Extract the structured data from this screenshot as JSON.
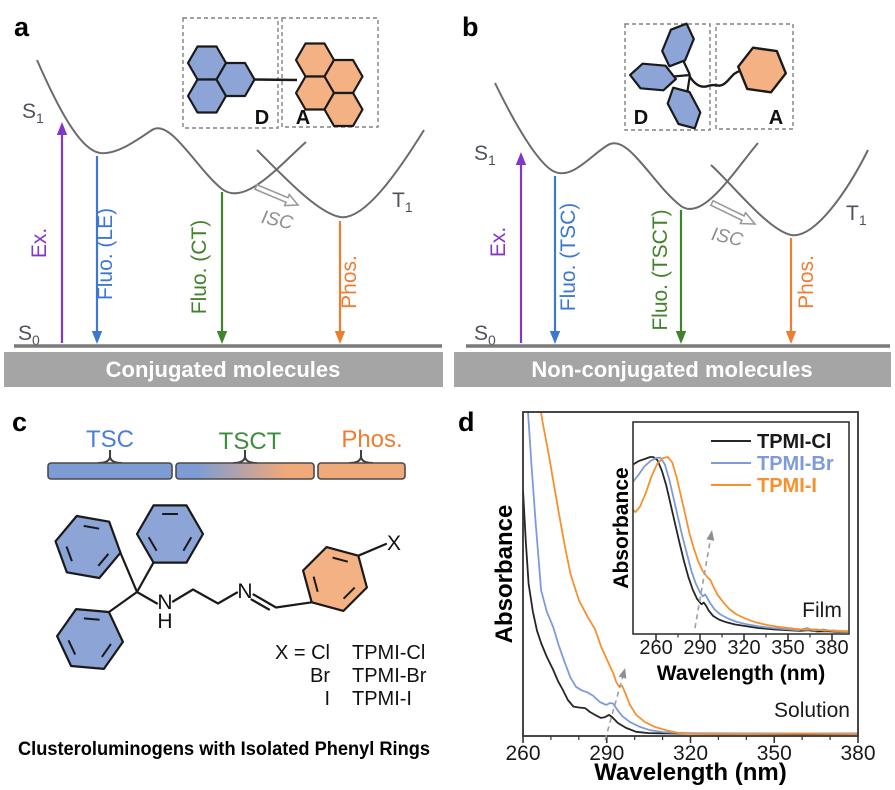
{
  "colors": {
    "excitation_purple": "#8138c8",
    "fluorescence_blue": "#3c78d2",
    "ct_green": "#43822c",
    "phosphorescence_orange": "#ed7d31",
    "surface_gray": "#6b6b6b",
    "donor_blue": "#8ca4d6",
    "acceptor_orange": "#f4b183",
    "footer_bar_gray": "#a5a5a5",
    "chart_black": "#262626",
    "chart_blue": "#7e9bd9",
    "chart_orange": "#f6912f"
  },
  "panel_a": {
    "label": "a",
    "donor_label": "D",
    "acceptor_label": "A",
    "s1_base": "S",
    "s1_sub": "1",
    "s0_base": "S",
    "s0_sub": "0",
    "t1_base": "T",
    "t1_sub": "1",
    "arrow_ex": "Ex.",
    "arrow_fluo_well1": "Fluo. (LE)",
    "arrow_fluo_well2": "Fluo. (CT)",
    "arrow_phos": "Phos.",
    "isc": "ISC",
    "footer": "Conjugated molecules"
  },
  "panel_b": {
    "label": "b",
    "donor_label": "D",
    "acceptor_label": "A",
    "s1_base": "S",
    "s1_sub": "1",
    "s0_base": "S",
    "s0_sub": "0",
    "t1_base": "T",
    "t1_sub": "1",
    "arrow_ex": "Ex.",
    "arrow_fluo_well1": "Fluo. (TSC)",
    "arrow_fluo_well2": "Fluo. (TSCT)",
    "arrow_phos": "Phos.",
    "isc": "ISC",
    "footer": "Non-conjugated molecules"
  },
  "panel_c": {
    "label": "c",
    "region_labels": [
      {
        "text": "TSC",
        "color": "#4a7fd8"
      },
      {
        "text": "TSCT",
        "color": "#3e8e3e"
      },
      {
        "text": "Phos.",
        "color": "#ed7d31"
      }
    ],
    "atoms": {
      "amine_n": "N",
      "amine_h": "H",
      "imine_n": "N",
      "substituent": "X"
    },
    "variants": [
      {
        "x": "X = Cl",
        "name": "TPMI-Cl"
      },
      {
        "x": "Br",
        "name": "TPMI-Br"
      },
      {
        "x": "I",
        "name": "TPMI-I"
      }
    ],
    "caption": "Clusteroluminogens with Isolated Phenyl Rings"
  },
  "panel_d": {
    "label": "d"
  },
  "chart_data": [
    {
      "id": "solution",
      "type": "line",
      "xlabel": "Wavelength (nm)",
      "ylabel": "Absorbance",
      "annotation": "Solution",
      "xlim": [
        260,
        380
      ],
      "xticks": [
        260,
        290,
        320,
        350,
        380
      ],
      "minor_xticks": [
        270,
        280,
        300,
        310,
        330,
        340,
        360,
        370
      ],
      "ylim": [
        0,
        1
      ],
      "legend": false,
      "arrow": {
        "x1": 289.4,
        "y1": -0.012,
        "x2": 296.6,
        "y2": 0.21
      },
      "series": [
        {
          "name": "TPMI-Cl",
          "color": "#262626",
          "x": [
            260,
            261,
            262,
            263.5,
            265,
            266.5,
            268.5,
            270.8,
            272.5,
            274.3,
            276.1,
            278,
            280,
            282.2,
            284,
            285.8,
            287.9,
            289.3,
            290.8,
            292,
            294,
            296.9,
            300.5,
            305,
            310,
            320,
            340,
            360,
            380
          ],
          "y": [
            0.76,
            0.6,
            0.47,
            0.385,
            0.325,
            0.287,
            0.245,
            0.204,
            0.17,
            0.142,
            0.111,
            0.091,
            0.088,
            0.086,
            0.074,
            0.065,
            0.056,
            0.058,
            0.065,
            0.058,
            0.04,
            0.025,
            0.013,
            0.009,
            0.008,
            0.007,
            0.006,
            0.006,
            0.006
          ]
        },
        {
          "name": "TPMI-Br",
          "color": "#7e9bd9",
          "x": [
            260,
            261.8,
            263,
            264.5,
            266.5,
            268.5,
            270.8,
            272.8,
            274.9,
            277,
            279,
            281,
            283,
            285,
            287.5,
            289.8,
            291.2,
            292.3,
            294,
            295.5,
            298.3,
            301.9,
            305.5,
            310.2,
            315,
            320,
            340,
            360,
            380
          ],
          "y": [
            1.25,
            1.0,
            0.84,
            0.66,
            0.45,
            0.385,
            0.336,
            0.28,
            0.228,
            0.18,
            0.152,
            0.141,
            0.135,
            0.125,
            0.105,
            0.096,
            0.102,
            0.1,
            0.078,
            0.062,
            0.043,
            0.028,
            0.018,
            0.012,
            0.01,
            0.009,
            0.008,
            0.008,
            0.008
          ]
        },
        {
          "name": "TPMI-I",
          "color": "#f6912f",
          "x": [
            260,
            262,
            264,
            266,
            267,
            269,
            271,
            273,
            275,
            277,
            280,
            283,
            285.8,
            288,
            290.5,
            292.3,
            293.4,
            294.5,
            295.5,
            296.6,
            298.3,
            300.6,
            303.7,
            307.2,
            311.3,
            316,
            320,
            340,
            360,
            380
          ],
          "y": [
            1.6,
            1.38,
            1.18,
            1.02,
            0.97,
            0.88,
            0.78,
            0.68,
            0.585,
            0.5,
            0.42,
            0.37,
            0.33,
            0.275,
            0.228,
            0.194,
            0.167,
            0.152,
            0.155,
            0.133,
            0.096,
            0.065,
            0.043,
            0.028,
            0.018,
            0.009,
            0.007,
            0.006,
            0.007,
            0.006
          ]
        }
      ]
    },
    {
      "id": "film",
      "type": "line",
      "xlabel": "Wavelength (nm)",
      "ylabel": "Absorbance",
      "annotation": "Film",
      "xlim": [
        244.3,
        391.6
      ],
      "xticks": [
        260,
        290,
        320,
        350,
        380
      ],
      "minor_xticks": [
        275,
        305,
        335,
        365
      ],
      "ylim": [
        0,
        1
      ],
      "legend": true,
      "arrow": {
        "x1": 286.6,
        "y1": 0.028,
        "x2": 298.2,
        "y2": 0.49
      },
      "series": [
        {
          "name": "TPMI-Cl",
          "color": "#262626",
          "x": [
            244.5,
            248,
            252,
            256,
            258,
            261,
            264,
            267,
            270,
            273,
            276,
            279,
            282,
            285,
            288,
            291,
            292.5,
            294,
            296,
            299,
            303,
            308,
            314,
            320,
            330,
            340,
            350,
            358,
            364,
            370,
            376,
            383,
            391
          ],
          "y": [
            0.8,
            0.815,
            0.825,
            0.835,
            0.835,
            0.82,
            0.77,
            0.7,
            0.61,
            0.52,
            0.43,
            0.345,
            0.27,
            0.21,
            0.165,
            0.14,
            0.148,
            0.135,
            0.11,
            0.085,
            0.068,
            0.055,
            0.045,
            0.038,
            0.028,
            0.022,
            0.018,
            0.015,
            0.018,
            0.012,
            0.013,
            0.011,
            0.01
          ]
        },
        {
          "name": "TPMI-Br",
          "color": "#7e9bd9",
          "x": [
            244.5,
            248,
            252,
            256,
            260,
            263,
            266,
            269,
            272,
            275,
            278,
            281,
            284,
            287,
            290,
            292,
            293.5,
            295,
            297,
            300,
            304,
            309,
            315,
            321,
            330,
            340,
            350,
            357,
            363,
            368,
            374,
            380,
            386,
            391
          ],
          "y": [
            0.72,
            0.75,
            0.79,
            0.815,
            0.83,
            0.832,
            0.8,
            0.73,
            0.64,
            0.55,
            0.46,
            0.38,
            0.3,
            0.24,
            0.196,
            0.178,
            0.187,
            0.17,
            0.145,
            0.115,
            0.092,
            0.073,
            0.057,
            0.047,
            0.036,
            0.028,
            0.022,
            0.018,
            0.028,
            0.016,
            0.021,
            0.014,
            0.013,
            0.012
          ]
        },
        {
          "name": "TPMI-I",
          "color": "#f6912f",
          "x": [
            244.5,
            246,
            249,
            253,
            257,
            261,
            265,
            268,
            271,
            274,
            277,
            280,
            283,
            286,
            289,
            292,
            295,
            297,
            299,
            302,
            306,
            310,
            315,
            321,
            328,
            336,
            345,
            354,
            362,
            369,
            375,
            381,
            387,
            391
          ],
          "y": [
            0.585,
            0.575,
            0.6,
            0.665,
            0.745,
            0.805,
            0.83,
            0.835,
            0.81,
            0.74,
            0.65,
            0.56,
            0.47,
            0.4,
            0.34,
            0.295,
            0.268,
            0.255,
            0.225,
            0.185,
            0.148,
            0.118,
            0.092,
            0.072,
            0.055,
            0.042,
            0.032,
            0.025,
            0.02,
            0.022,
            0.016,
            0.017,
            0.013,
            0.013
          ]
        }
      ]
    }
  ]
}
